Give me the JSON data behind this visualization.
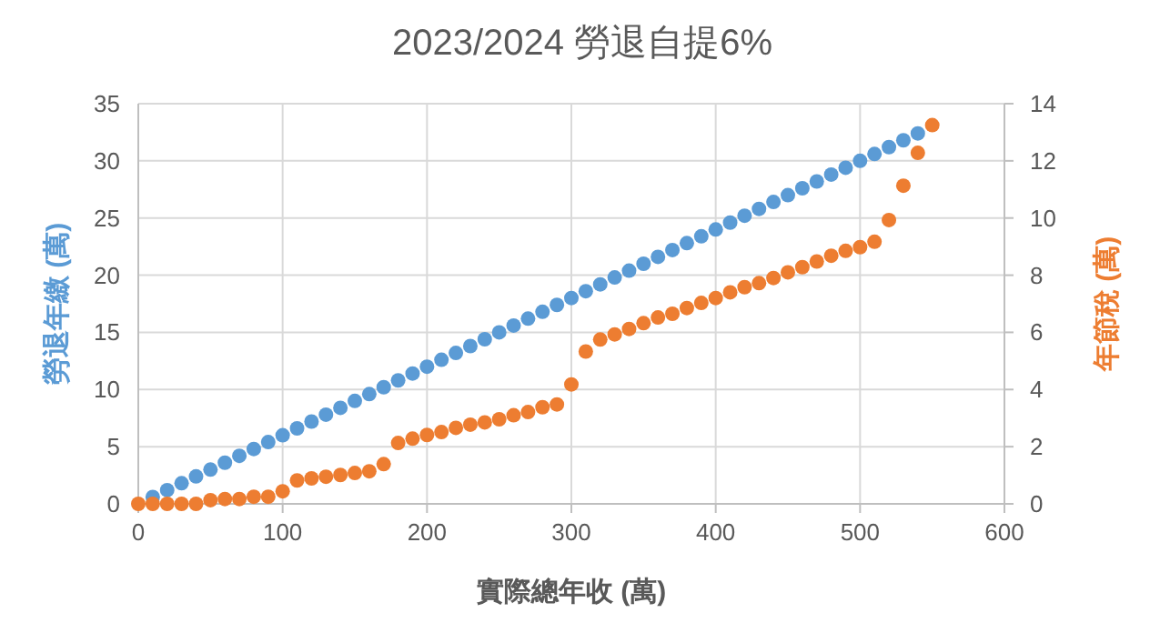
{
  "chart_data": {
    "type": "scatter",
    "title": "2023/2024 勞退自提6%",
    "xlabel": "實際總年收 (萬)",
    "ylabel": "勞退年繳 (萬)",
    "y2label": "年節稅 (萬)",
    "xlim": [
      0,
      600
    ],
    "xticks": [
      0,
      100,
      200,
      300,
      400,
      500,
      600
    ],
    "ylim": [
      0,
      35
    ],
    "yticks": [
      0,
      5,
      10,
      15,
      20,
      25,
      30,
      35
    ],
    "y2lim": [
      0,
      14
    ],
    "y2ticks": [
      0,
      2,
      4,
      6,
      8,
      10,
      12,
      14
    ],
    "grid": true,
    "marker": "circle",
    "series": [
      {
        "color": "#5b9bd5",
        "x": [
          10,
          20,
          30,
          40,
          50,
          60,
          70,
          80,
          90,
          100,
          110,
          120,
          130,
          140,
          150,
          160,
          170,
          180,
          190,
          200,
          210,
          220,
          230,
          240,
          250,
          260,
          270,
          280,
          290,
          300,
          310,
          320,
          330,
          340,
          350,
          360,
          370,
          380,
          390,
          400,
          410,
          420,
          430,
          440,
          450,
          460,
          470,
          480,
          490,
          500,
          510,
          520,
          530,
          540
        ],
        "values": [
          0.6,
          1.2,
          1.8,
          2.4,
          3,
          3.6,
          4.2,
          4.8,
          5.4,
          6,
          6.6,
          7.2,
          7.8,
          8.4,
          9,
          9.6,
          10.2,
          10.8,
          11.4,
          12,
          12.6,
          13.2,
          13.8,
          14.4,
          15,
          15.6,
          16.2,
          16.8,
          17.4,
          18,
          18.6,
          19.2,
          19.8,
          20.4,
          21,
          21.6,
          22.2,
          22.8,
          23.4,
          24,
          24.6,
          25.2,
          25.8,
          26.4,
          27,
          27.6,
          28.2,
          28.8,
          29.4,
          30,
          30.6,
          31.2,
          31.8,
          32.4
        ]
      },
      {
        "color": "#ed7d31",
        "axis": "y2",
        "x": [
          0,
          10,
          20,
          30,
          40,
          50,
          60,
          70,
          80,
          90,
          100,
          110,
          120,
          130,
          140,
          150,
          160,
          170,
          180,
          190,
          200,
          210,
          220,
          230,
          240,
          250,
          260,
          270,
          280,
          290,
          300,
          310,
          320,
          330,
          340,
          350,
          360,
          370,
          380,
          390,
          400,
          410,
          420,
          430,
          440,
          450,
          460,
          470,
          480,
          490,
          500,
          510,
          520,
          530,
          540,
          550
        ],
        "values": [
          0,
          0,
          0,
          0,
          0,
          0.13,
          0.17,
          0.17,
          0.25,
          0.25,
          0.44,
          0.82,
          0.89,
          0.95,
          1.01,
          1.08,
          1.14,
          1.39,
          2.13,
          2.28,
          2.41,
          2.51,
          2.66,
          2.77,
          2.85,
          2.96,
          3.1,
          3.21,
          3.38,
          3.48,
          4.18,
          5.33,
          5.75,
          5.93,
          6.12,
          6.32,
          6.52,
          6.65,
          6.85,
          7.03,
          7.2,
          7.4,
          7.58,
          7.72,
          7.9,
          8.1,
          8.28,
          8.48,
          8.68,
          8.85,
          8.98,
          9.17,
          9.93,
          11.13,
          12.28,
          13.25
        ]
      }
    ]
  }
}
